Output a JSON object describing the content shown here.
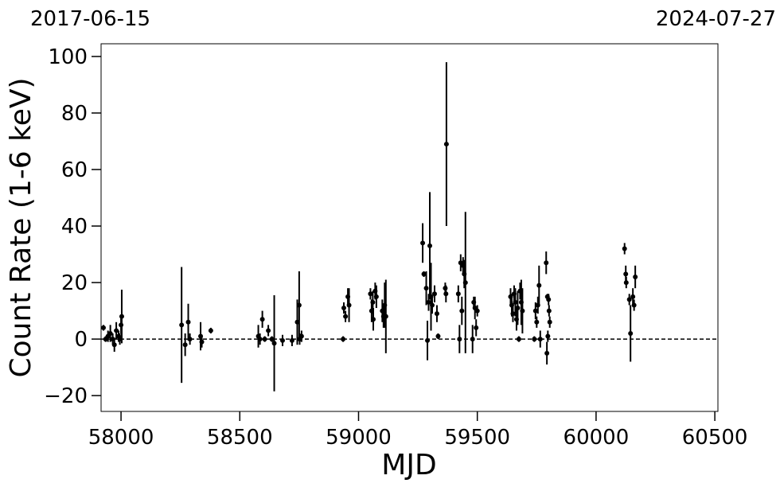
{
  "chart_data": {
    "type": "errorbar",
    "x_label": "MJD",
    "y_label": "Count Rate (1-6 keV)",
    "top_left_label": "2017-06-15",
    "top_right_label": "2024-07-27",
    "xlim": [
      57916,
      60513
    ],
    "ylim": [
      -25.6,
      104.5
    ],
    "xticks": [
      58000,
      58500,
      59000,
      59500,
      60000,
      60500
    ],
    "yticks": [
      {
        "value": -20,
        "label": "−20"
      },
      0,
      20,
      40,
      60,
      80,
      100
    ],
    "reference_line": 0,
    "color": "#000000",
    "x": [
      57926,
      57935,
      57945,
      57955,
      57965,
      57972,
      57980,
      57990,
      57995,
      58000,
      58003,
      58255,
      58270,
      58283,
      58290,
      58335,
      58340,
      58378,
      58578,
      58585,
      58595,
      58605,
      58620,
      58635,
      58645,
      58680,
      58720,
      58742,
      58750,
      58752,
      58760,
      58935,
      58938,
      58945,
      58955,
      58960,
      59050,
      59055,
      59060,
      59062,
      59070,
      59075,
      59100,
      59105,
      59110,
      59115,
      59270,
      59275,
      59285,
      59290,
      59295,
      59300,
      59305,
      59310,
      59320,
      59330,
      59335,
      59365,
      59368,
      59370,
      59420,
      59425,
      59430,
      59435,
      59440,
      59445,
      59450,
      59480,
      59485,
      59490,
      59495,
      59500,
      59640,
      59645,
      59650,
      59655,
      59660,
      59665,
      59670,
      59675,
      59680,
      59685,
      59690,
      59740,
      59745,
      59750,
      59755,
      59760,
      59765,
      59790,
      59795,
      59800,
      59802,
      59805,
      59797,
      59793,
      60120,
      60125,
      60127,
      60140,
      60145,
      60155,
      60160,
      60165
    ],
    "values": [
      4,
      0,
      1,
      2,
      0,
      -2,
      3,
      1,
      0,
      5,
      8,
      5,
      -2,
      6,
      0,
      1,
      -1,
      3,
      1,
      0,
      7,
      0,
      3,
      0,
      -1.5,
      -0.5,
      -0.5,
      6,
      12,
      0,
      1,
      0,
      11,
      8,
      15,
      12,
      16,
      10,
      13,
      7,
      17,
      15,
      10,
      8,
      12,
      8,
      34,
      23,
      18,
      -0.5,
      13,
      33,
      15,
      12,
      16,
      9,
      1,
      18,
      16,
      69,
      16,
      0,
      27,
      10,
      26,
      23,
      20,
      0,
      13,
      11,
      4,
      10,
      15,
      12,
      9,
      16,
      13,
      7,
      11,
      0,
      17,
      13,
      10,
      0,
      10,
      6,
      12,
      19,
      0,
      27,
      15,
      14,
      10,
      6,
      1,
      -5,
      32,
      23,
      20,
      14,
      2,
      15,
      12,
      22
    ],
    "errors": [
      1,
      1,
      2,
      3,
      2,
      2.5,
      3,
      2,
      2,
      3,
      9.5,
      20.5,
      4,
      6.5,
      2,
      5,
      2,
      1,
      4,
      2,
      3,
      1,
      2,
      1,
      17,
      2,
      2,
      8,
      12,
      2,
      2,
      1,
      2,
      2,
      3,
      6,
      2,
      4,
      4,
      4,
      3,
      4,
      4,
      4,
      8,
      13,
      7,
      1,
      6,
      7,
      3,
      19,
      12,
      3,
      3,
      3,
      1,
      2,
      3,
      29,
      3,
      5,
      3,
      5,
      3,
      5,
      25,
      5,
      2,
      4,
      3,
      2,
      3,
      4,
      3,
      3,
      5,
      4,
      6,
      1,
      3,
      8,
      8,
      1,
      3,
      2,
      3,
      7,
      3,
      4,
      1,
      2,
      2,
      2,
      2,
      4,
      2,
      3,
      2,
      2,
      10,
      3,
      2,
      4
    ]
  }
}
